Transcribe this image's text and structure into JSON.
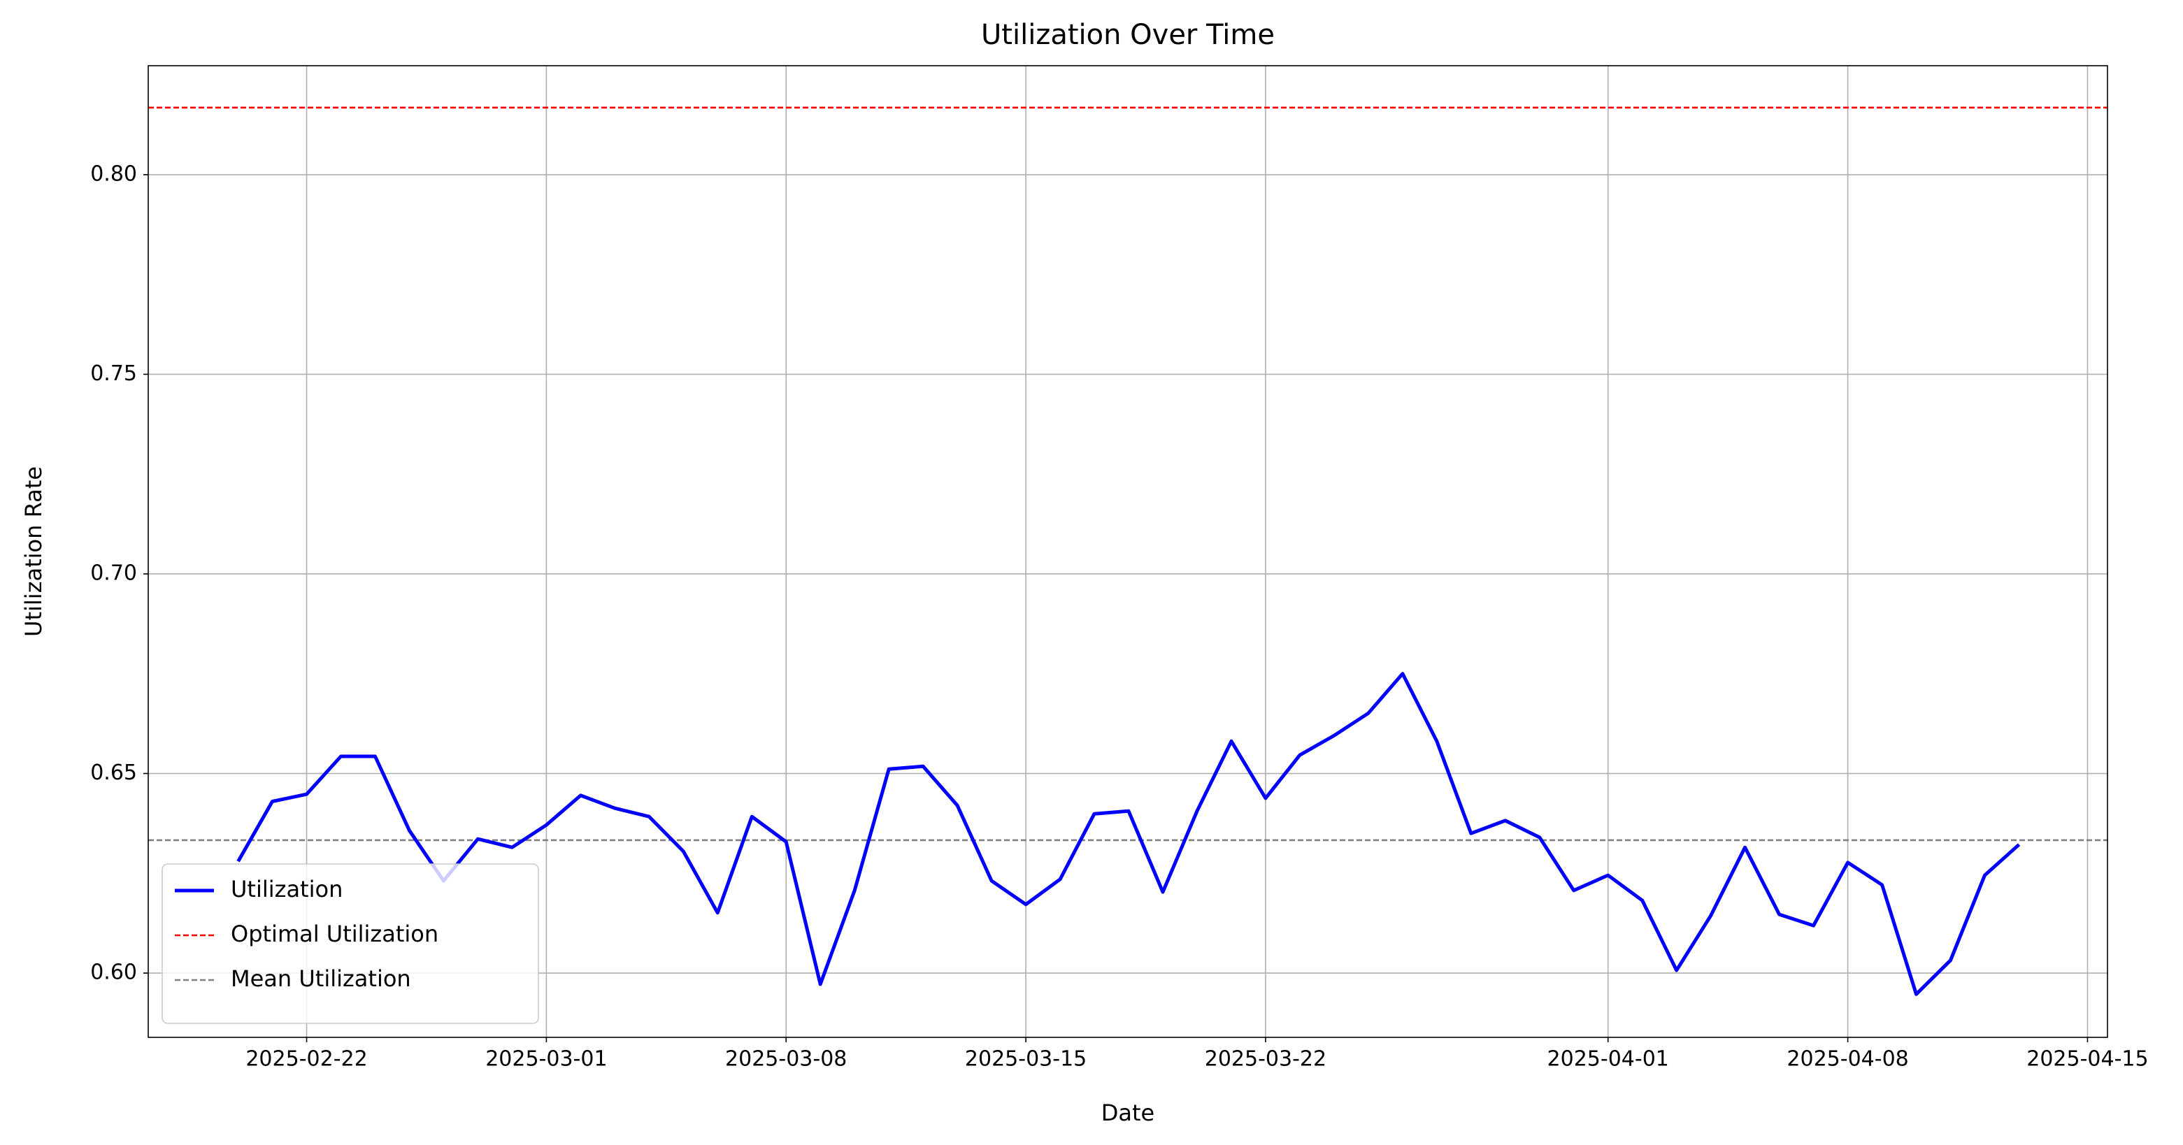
{
  "chart_data": {
    "type": "line",
    "title": "Utilization Over Time",
    "x_label": "Date",
    "y_label": "Utilization Rate",
    "x": [
      "2025-02-20",
      "2025-02-21",
      "2025-02-22",
      "2025-02-23",
      "2025-02-24",
      "2025-02-25",
      "2025-02-26",
      "2025-02-27",
      "2025-02-28",
      "2025-03-01",
      "2025-03-02",
      "2025-03-03",
      "2025-03-04",
      "2025-03-05",
      "2025-03-06",
      "2025-03-07",
      "2025-03-08",
      "2025-03-09",
      "2025-03-10",
      "2025-03-11",
      "2025-03-12",
      "2025-03-13",
      "2025-03-14",
      "2025-03-15",
      "2025-03-16",
      "2025-03-17",
      "2025-03-18",
      "2025-03-19",
      "2025-03-20",
      "2025-03-21",
      "2025-03-22",
      "2025-03-23",
      "2025-03-24",
      "2025-03-25",
      "2025-03-26",
      "2025-03-27",
      "2025-03-28",
      "2025-03-29",
      "2025-03-30",
      "2025-03-31",
      "2025-04-01",
      "2025-04-02",
      "2025-04-03",
      "2025-04-04",
      "2025-04-05",
      "2025-04-06",
      "2025-04-07",
      "2025-04-08",
      "2025-04-09",
      "2025-04-10",
      "2025-04-11",
      "2025-04-12",
      "2025-04-13"
    ],
    "series": [
      {
        "name": "Utilization",
        "color": "#0000ff",
        "values": [
          0.628,
          0.643,
          0.6448,
          0.6543,
          0.6543,
          0.6357,
          0.6231,
          0.6336,
          0.6315,
          0.6371,
          0.6445,
          0.6413,
          0.6392,
          0.6305,
          0.6151,
          0.6392,
          0.6329,
          0.5972,
          0.6207,
          0.6511,
          0.6518,
          0.642,
          0.6231,
          0.6172,
          0.6235,
          0.6399,
          0.6406,
          0.6203,
          0.6406,
          0.6581,
          0.6438,
          0.6546,
          0.6595,
          0.6651,
          0.675,
          0.6581,
          0.635,
          0.6382,
          0.634,
          0.6207,
          0.6245,
          0.6182,
          0.6007,
          0.6144,
          0.6315,
          0.6147,
          0.6119,
          0.6277,
          0.6221,
          0.5947,
          0.6032,
          0.6245,
          0.6322
        ]
      }
    ],
    "reference_lines": [
      {
        "name": "Optimal Utilization",
        "value": 0.8168,
        "color": "#ff0000"
      },
      {
        "name": "Mean Utilization",
        "value": 0.6333,
        "color": "#808080"
      }
    ],
    "xlim": [
      "2025-02-17T09:00",
      "2025-04-15T14:00"
    ],
    "xticks": [
      "2025-02-22",
      "2025-03-01",
      "2025-03-08",
      "2025-03-15",
      "2025-03-22",
      "2025-04-01",
      "2025-04-08",
      "2025-04-15"
    ],
    "ylim": [
      0.5839,
      0.8273
    ],
    "yticks": [
      {
        "value": 0.6,
        "label": "0.60"
      },
      {
        "value": 0.65,
        "label": "0.65"
      },
      {
        "value": 0.7,
        "label": "0.70"
      },
      {
        "value": 0.75,
        "label": "0.75"
      },
      {
        "value": 0.8,
        "label": "0.80"
      }
    ],
    "grid": true,
    "legend": "lower left"
  }
}
